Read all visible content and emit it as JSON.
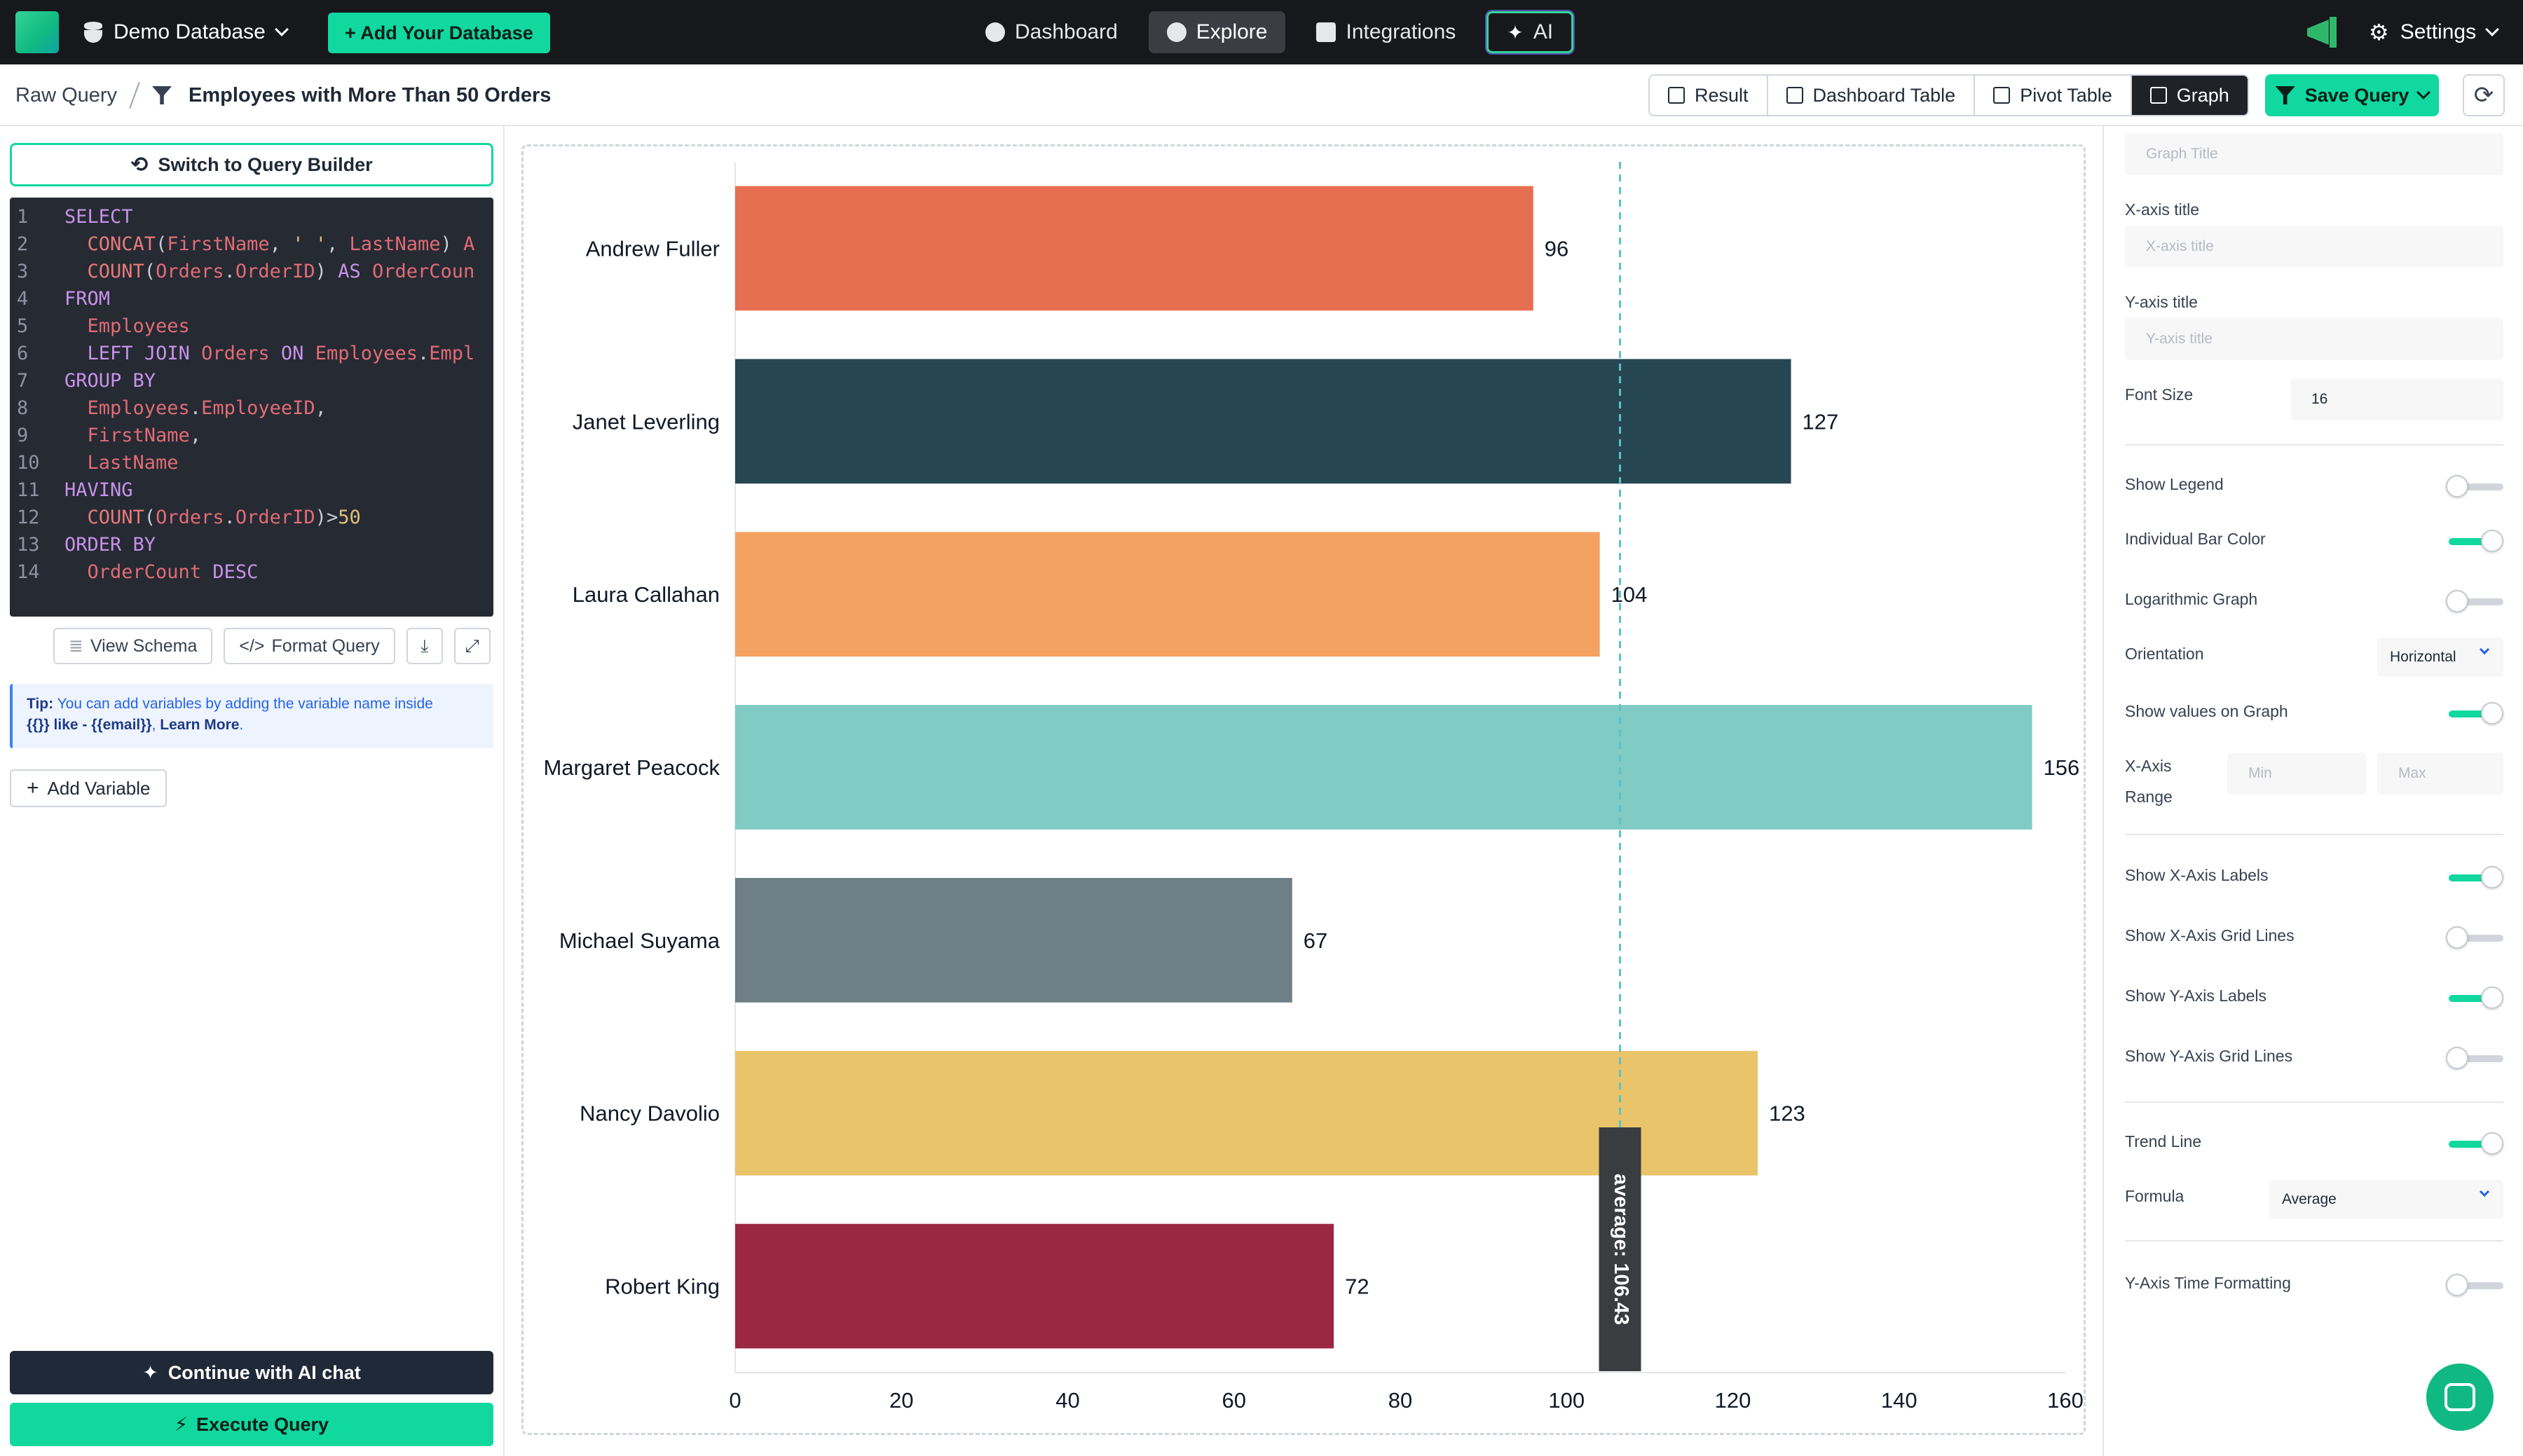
{
  "topnav": {
    "database_label": "Demo Database",
    "add_database_label": "+ Add Your Database",
    "nav": [
      {
        "label": "Dashboard",
        "icon": "gauge-icon",
        "active": false
      },
      {
        "label": "Explore",
        "icon": "compass-icon",
        "active": true
      },
      {
        "label": "Integrations",
        "icon": "gears-icon",
        "active": false
      },
      {
        "label": "AI",
        "icon": "sparkles-icon",
        "active": false
      }
    ],
    "settings_label": "Settings"
  },
  "subheader": {
    "crumb_root": "Raw Query",
    "crumb_title": "Employees with More Than 50 Orders",
    "tabs": [
      {
        "label": "Result",
        "active": false
      },
      {
        "label": "Dashboard Table",
        "active": false
      },
      {
        "label": "Pivot Table",
        "active": false
      },
      {
        "label": "Graph",
        "active": true
      }
    ],
    "save_query_label": "Save Query"
  },
  "left": {
    "switch_label": "Switch to Query Builder",
    "code_lines": [
      "SELECT",
      "  CONCAT(FirstName, ' ', LastName) A",
      "  COUNT(Orders.OrderID) AS OrderCoun",
      "FROM",
      "  Employees",
      "  LEFT JOIN Orders ON Employees.Empl",
      "GROUP BY",
      "  Employees.EmployeeID,",
      "  FirstName,",
      "  LastName",
      "HAVING",
      "  COUNT(Orders.OrderID)>50",
      "ORDER BY",
      "  OrderCount DESC"
    ],
    "view_schema_label": "View Schema",
    "format_query_label": "Format Query",
    "tip_prefix": "Tip:",
    "tip_text": " You can add variables by adding the variable name inside",
    "tip_text2_pre": "{{}} like - ",
    "tip_example": "{{email}}",
    "tip_learn_more": "Learn More",
    "add_variable_label": "Add Variable",
    "ai_chat_label": "Continue with AI chat",
    "execute_label": "Execute Query"
  },
  "chart_data": {
    "type": "bar",
    "orientation": "horizontal",
    "categories": [
      "Andrew Fuller",
      "Janet Leverling",
      "Laura Callahan",
      "Margaret Peacock",
      "Michael Suyama",
      "Nancy Davolio",
      "Robert King"
    ],
    "values": [
      96,
      127,
      104,
      156,
      67,
      123,
      72
    ],
    "colors": [
      "#e76f51",
      "#264653",
      "#f4a261",
      "#80cbc4",
      "#6e7f86",
      "#e9c46a",
      "#9b2743"
    ],
    "xlim": [
      0,
      160
    ],
    "xticks": [
      "0",
      "20",
      "40",
      "60",
      "80",
      "100",
      "120",
      "140",
      "160"
    ],
    "trend_line": {
      "formula": "Average",
      "value": 106.43,
      "label": "average: 106.43"
    },
    "show_values": true,
    "grid": false,
    "legend": false
  },
  "right": {
    "graph_title_placeholder": "Graph Title",
    "x_axis_title_label": "X-axis title",
    "x_axis_title_placeholder": "X-axis title",
    "y_axis_title_label": "Y-axis title",
    "y_axis_title_placeholder": "Y-axis title",
    "font_size_label": "Font Size",
    "font_size_value": "16",
    "show_legend_label": "Show Legend",
    "individual_bar_color_label": "Individual Bar Color",
    "logarithmic_label": "Logarithmic Graph",
    "orientation_label": "Orientation",
    "orientation_value": "Horizontal",
    "show_values_label": "Show values on Graph",
    "x_range_label_1": "X-Axis",
    "x_range_label_2": "Range",
    "min_placeholder": "Min",
    "max_placeholder": "Max",
    "show_x_labels_label": "Show X-Axis Labels",
    "show_x_grid_label": "Show X-Axis Grid Lines",
    "show_y_labels_label": "Show Y-Axis Labels",
    "show_y_grid_label": "Show Y-Axis Grid Lines",
    "trend_line_label": "Trend Line",
    "formula_label": "Formula",
    "formula_value": "Average",
    "y_time_label": "Y-Axis Time Formatting"
  }
}
